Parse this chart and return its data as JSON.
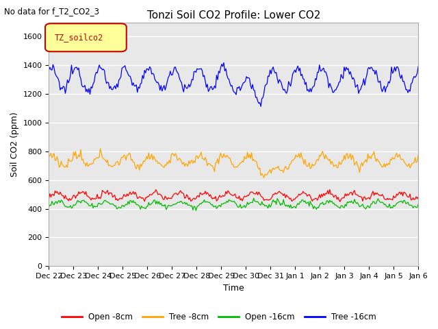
{
  "title": "Tonzi Soil CO2 Profile: Lower CO2",
  "subtitle": "No data for f_T2_CO2_3",
  "legend_label": "TZ_soilco2",
  "ylabel": "Soil CO2 (ppm)",
  "xlabel": "Time",
  "ylim": [
    0,
    1700
  ],
  "yticks": [
    0,
    200,
    400,
    600,
    800,
    1000,
    1200,
    1400,
    1600
  ],
  "x_tick_labels": [
    "Dec 22",
    "Dec 23",
    "Dec 24",
    "Dec 25",
    "Dec 26",
    "Dec 27",
    "Dec 28",
    "Dec 29",
    "Dec 30",
    "Dec 31",
    "Jan 1",
    "Jan 2",
    "Jan 3",
    "Jan 4",
    "Jan 5",
    "Jan 6"
  ],
  "colors": {
    "open_8cm": "#ff0000",
    "tree_8cm": "#ffa500",
    "open_16cm": "#00bb00",
    "tree_16cm": "#0000ff"
  },
  "legend_entries": [
    "Open -8cm",
    "Tree -8cm",
    "Open -16cm",
    "Tree -16cm"
  ],
  "ax_bg_color": "#e8e8e8",
  "grid_color": "#ffffff",
  "title_fontsize": 11,
  "label_fontsize": 9,
  "tick_fontsize": 8,
  "legend_box_color": "#ffff99",
  "legend_box_edge": "#cc0000",
  "legend_label_color": "#cc0000"
}
